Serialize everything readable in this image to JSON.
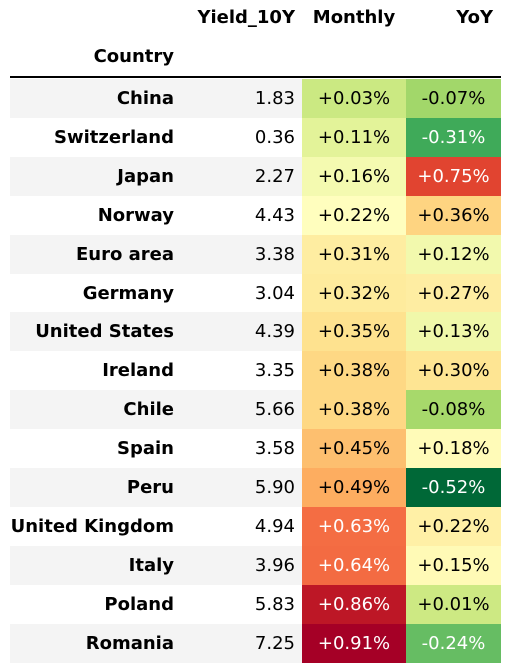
{
  "chart_data": {
    "type": "table",
    "columns": [
      "Yield_10Y",
      "Monthly",
      "YoY"
    ],
    "index_label": "Country",
    "rows": [
      {
        "country": "China",
        "yield": "1.83",
        "monthly": "+0.03%",
        "yoy": "-0.07%"
      },
      {
        "country": "Switzerland",
        "yield": "0.36",
        "monthly": "+0.11%",
        "yoy": "-0.31%"
      },
      {
        "country": "Japan",
        "yield": "2.27",
        "monthly": "+0.16%",
        "yoy": "+0.75%"
      },
      {
        "country": "Norway",
        "yield": "4.43",
        "monthly": "+0.22%",
        "yoy": "+0.36%"
      },
      {
        "country": "Euro area",
        "yield": "3.38",
        "monthly": "+0.31%",
        "yoy": "+0.12%"
      },
      {
        "country": "Germany",
        "yield": "3.04",
        "monthly": "+0.32%",
        "yoy": "+0.27%"
      },
      {
        "country": "United States",
        "yield": "4.39",
        "monthly": "+0.35%",
        "yoy": "+0.13%"
      },
      {
        "country": "Ireland",
        "yield": "3.35",
        "monthly": "+0.38%",
        "yoy": "+0.30%"
      },
      {
        "country": "Chile",
        "yield": "5.66",
        "monthly": "+0.38%",
        "yoy": "-0.08%"
      },
      {
        "country": "Spain",
        "yield": "3.58",
        "monthly": "+0.45%",
        "yoy": "+0.18%"
      },
      {
        "country": "Peru",
        "yield": "5.90",
        "monthly": "+0.49%",
        "yoy": "-0.52%"
      },
      {
        "country": "United Kingdom",
        "yield": "4.94",
        "monthly": "+0.63%",
        "yoy": "+0.22%"
      },
      {
        "country": "Italy",
        "yield": "3.96",
        "monthly": "+0.64%",
        "yoy": "+0.15%"
      },
      {
        "country": "Poland",
        "yield": "5.83",
        "monthly": "+0.86%",
        "yoy": "+0.01%"
      },
      {
        "country": "Romania",
        "yield": "7.25",
        "monthly": "+0.91%",
        "yoy": "-0.24%"
      }
    ],
    "colors": {
      "monthly": [
        "#cbe982",
        "#e3f399",
        "#f4fab0",
        "#fffebe",
        "#feeda1",
        "#feeb9d",
        "#fee28f",
        "#fed884",
        "#fed884",
        "#fdbf6f",
        "#fdad60",
        "#f46d43",
        "#f36b42",
        "#bd1726",
        "#a50026"
      ],
      "yoy": [
        "#a2d76a",
        "#3faa59",
        "#e14430",
        "#fed481",
        "#f2f9ad",
        "#feeda2",
        "#f0f8aa",
        "#fee593",
        "#a7d96b",
        "#fffbb8",
        "#006837",
        "#fff0a6",
        "#fffab6",
        "#cde983",
        "#66bd63"
      ],
      "stripe": "#f4f4f4",
      "dark_text_on_light": "#000000",
      "light_text_on_dark": "#ffffff"
    },
    "text_color_light_monthly": [
      false,
      false,
      false,
      false,
      false,
      false,
      false,
      false,
      false,
      false,
      false,
      true,
      true,
      true,
      true
    ],
    "text_color_light_yoy": [
      false,
      true,
      true,
      false,
      false,
      false,
      false,
      false,
      false,
      false,
      true,
      false,
      false,
      false,
      true
    ]
  }
}
